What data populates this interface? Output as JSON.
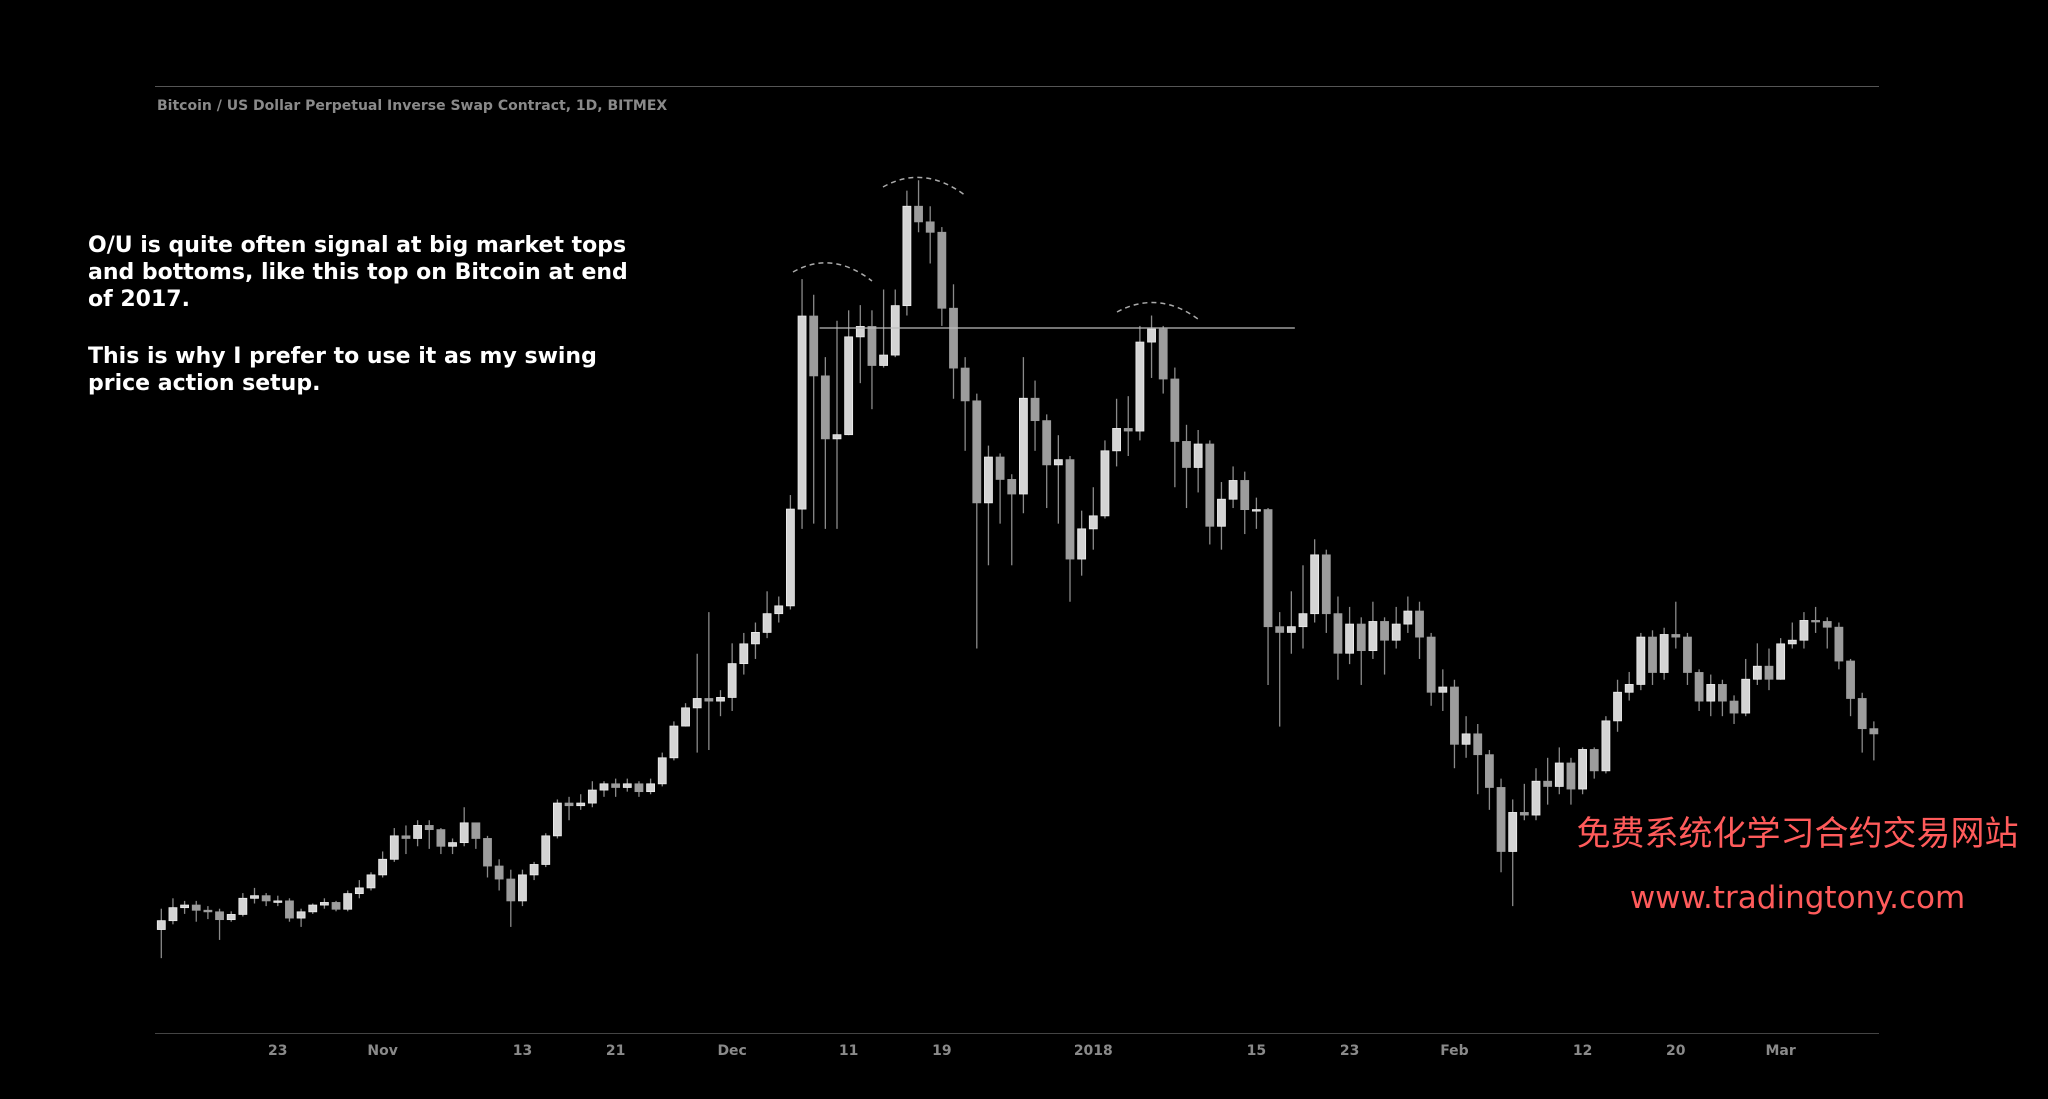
{
  "chart_data": {
    "type": "candlestick",
    "title": "Bitcoin / US Dollar Perpetual Inverse Swap Contract, 1D, BITMEX",
    "categories": [
      null,
      null,
      null,
      null,
      null,
      null,
      null,
      null,
      null,
      null,
      "23",
      null,
      null,
      null,
      null,
      null,
      null,
      null,
      null,
      "Nov",
      null,
      null,
      null,
      null,
      null,
      null,
      null,
      null,
      null,
      null,
      null,
      "13",
      null,
      null,
      null,
      null,
      null,
      null,
      null,
      "21",
      null,
      null,
      null,
      null,
      null,
      null,
      null,
      null,
      null,
      "Dec",
      null,
      null,
      null,
      null,
      null,
      null,
      null,
      null,
      null,
      "11",
      null,
      null,
      null,
      null,
      null,
      null,
      null,
      "19",
      null,
      null,
      null,
      null,
      null,
      null,
      null,
      null,
      null,
      null,
      null,
      null,
      "2018",
      null,
      null,
      null,
      null,
      null,
      null,
      null,
      null,
      null,
      null,
      null,
      null,
      null,
      "15",
      null,
      null,
      null,
      null,
      null,
      null,
      null,
      "23",
      null,
      null,
      null,
      null,
      null,
      null,
      null,
      null,
      "Feb",
      null,
      null,
      null,
      null,
      null,
      null,
      null,
      null,
      null,
      null,
      "12",
      null,
      null,
      null,
      null,
      null,
      null,
      null,
      "20",
      null,
      null,
      null,
      null,
      null,
      null,
      null,
      null,
      "Mar",
      null,
      null,
      null,
      null,
      null,
      null,
      null,
      null
    ],
    "open": [
      5500,
      5670,
      5920,
      5970,
      5870,
      5840,
      5690,
      5790,
      6100,
      6150,
      6050,
      6050,
      5720,
      5840,
      5970,
      6020,
      5890,
      6190,
      6300,
      6550,
      6850,
      7300,
      7250,
      7500,
      7420,
      7100,
      7170,
      7550,
      7250,
      6720,
      6470,
      6050,
      6550,
      6750,
      7300,
      7930,
      7880,
      7930,
      8180,
      8300,
      8230,
      8300,
      8150,
      8300,
      8800,
      9410,
      9760,
      9940,
      9890,
      9960,
      10610,
      10990,
      11210,
      11570,
      11720,
      13580,
      17290,
      16140,
      14930,
      15010,
      16890,
      17090,
      16340,
      16540,
      17490,
      19400,
      19100,
      18900,
      17440,
      16290,
      15660,
      13700,
      14580,
      14150,
      13870,
      15710,
      15280,
      14430,
      14530,
      12620,
      13200,
      13450,
      14700,
      15130,
      15080,
      16790,
      17040,
      16080,
      14880,
      14380,
      14830,
      13250,
      13770,
      14130,
      13570,
      13570,
      11320,
      11210,
      11320,
      11570,
      12700,
      11570,
      10810,
      11370,
      10860,
      11420,
      11060,
      11370,
      11620,
      11120,
      10060,
      10160,
      9060,
      9260,
      8860,
      8230,
      7000,
      7750,
      7700,
      8350,
      8250,
      8700,
      8200,
      8960,
      8550,
      9510,
      10060,
      10210,
      11120,
      10440,
      11170,
      11120,
      10440,
      9890,
      10210,
      9890,
      9660,
      10310,
      10560,
      10310,
      10990,
      11060,
      11440,
      11420,
      11310,
      10660,
      9940,
      9360
    ],
    "high": [
      5900,
      6100,
      6050,
      6050,
      5950,
      5900,
      5850,
      6200,
      6300,
      6200,
      6150,
      6100,
      5900,
      6000,
      6100,
      6050,
      6250,
      6450,
      6600,
      7000,
      7450,
      7500,
      7600,
      7600,
      7450,
      7250,
      7850,
      7550,
      7300,
      6850,
      6650,
      6650,
      6800,
      7350,
      8000,
      8050,
      8100,
      8350,
      8350,
      8400,
      8400,
      8350,
      8400,
      8900,
      9500,
      9850,
      10800,
      11600,
      10100,
      11000,
      11200,
      11400,
      12000,
      11900,
      13850,
      18000,
      17700,
      16500,
      17200,
      17400,
      17500,
      17400,
      17800,
      17800,
      19700,
      19900,
      19400,
      19000,
      17900,
      16500,
      15800,
      14800,
      14650,
      14250,
      16500,
      16050,
      15400,
      15000,
      14600,
      13550,
      14000,
      14900,
      15700,
      15750,
      17100,
      17300,
      17100,
      16300,
      15200,
      15100,
      14900,
      14100,
      14400,
      14300,
      13800,
      13600,
      11600,
      12000,
      12500,
      13000,
      12800,
      11900,
      11700,
      11500,
      11800,
      11500,
      11700,
      11900,
      11800,
      11200,
      10500,
      10300,
      9600,
      9450,
      8950,
      8400,
      8000,
      8300,
      8600,
      8800,
      9000,
      8800,
      9000,
      9000,
      9600,
      10300,
      10450,
      11200,
      11250,
      11300,
      11800,
      11200,
      10500,
      10400,
      10300,
      10000,
      10700,
      11000,
      10900,
      11100,
      11400,
      11600,
      11700,
      11500,
      11400,
      10700,
      10050,
      9500
    ],
    "low": [
      4950,
      5600,
      5800,
      5650,
      5700,
      5300,
      5650,
      5750,
      6000,
      5950,
      5950,
      5650,
      5550,
      5800,
      5900,
      5850,
      5850,
      6100,
      6250,
      6500,
      6800,
      6950,
      7100,
      7050,
      6950,
      6950,
      7100,
      7050,
      6500,
      6250,
      5550,
      5950,
      6450,
      6700,
      7250,
      7600,
      7800,
      7850,
      8050,
      8050,
      8150,
      8050,
      8100,
      8250,
      8750,
      9400,
      8900,
      8950,
      9600,
      9700,
      10400,
      10700,
      11100,
      11400,
      11650,
      13200,
      13300,
      13200,
      13200,
      15000,
      16000,
      15500,
      16300,
      16500,
      17300,
      18900,
      18300,
      17100,
      15700,
      14700,
      10900,
      12500,
      13300,
      12500,
      13500,
      14700,
      13600,
      13300,
      11800,
      12300,
      12800,
      13400,
      14400,
      14600,
      14900,
      16100,
      15800,
      14000,
      13600,
      13900,
      12900,
      12800,
      13600,
      13100,
      13200,
      10200,
      9400,
      10800,
      10900,
      11400,
      11200,
      10300,
      10600,
      10200,
      10700,
      10400,
      10900,
      11200,
      10700,
      9800,
      9700,
      8600,
      8800,
      8100,
      7800,
      6600,
      5950,
      7600,
      7600,
      7900,
      8100,
      7900,
      8100,
      8400,
      8500,
      9300,
      9900,
      10100,
      10200,
      10300,
      10900,
      10200,
      9700,
      9600,
      9600,
      9450,
      9600,
      10200,
      10100,
      10300,
      10900,
      10900,
      11200,
      10900,
      10500,
      9600,
      8900,
      8750
    ],
    "close": [
      5670,
      5920,
      5970,
      5870,
      5840,
      5690,
      5790,
      6100,
      6150,
      6050,
      6050,
      5720,
      5840,
      5970,
      6020,
      5890,
      6190,
      6300,
      6550,
      6850,
      7300,
      7250,
      7500,
      7420,
      7100,
      7170,
      7550,
      7250,
      6720,
      6470,
      6050,
      6550,
      6750,
      7300,
      7930,
      7880,
      7930,
      8180,
      8300,
      8230,
      8300,
      8150,
      8300,
      8800,
      9410,
      9760,
      9940,
      9890,
      9960,
      10610,
      10990,
      11210,
      11570,
      11720,
      13580,
      17290,
      16140,
      14930,
      15010,
      16890,
      17090,
      16340,
      16540,
      17490,
      19400,
      19100,
      18900,
      17440,
      16290,
      15660,
      13700,
      14580,
      14150,
      13870,
      15710,
      15280,
      14430,
      14530,
      12620,
      13200,
      13450,
      14700,
      15130,
      15080,
      16790,
      17040,
      16080,
      14880,
      14380,
      14830,
      13250,
      13770,
      14130,
      13570,
      13570,
      11320,
      11210,
      11320,
      11570,
      12700,
      11570,
      10810,
      11370,
      10860,
      11420,
      11060,
      11370,
      11620,
      11120,
      10060,
      10160,
      9060,
      9260,
      8860,
      8230,
      7000,
      7750,
      7700,
      8350,
      8250,
      8700,
      8200,
      8960,
      8550,
      9510,
      10060,
      10210,
      11120,
      10440,
      11170,
      11120,
      10440,
      9890,
      10210,
      9890,
      9660,
      10310,
      10560,
      10310,
      10990,
      11060,
      11440,
      11420,
      11310,
      10660,
      9940,
      9360,
      9260
    ],
    "ylim": [
      3000,
      21000
    ],
    "up_color": "#d4d4d4",
    "down_color": "#9c9c9c",
    "wick_color": "#8a8a8a",
    "hline": 17060
  },
  "annotation": [
    "O/U is quite often signal at big market tops",
    "and bottoms, like this top on Bitcoin at end",
    "of 2017.",
    "This is why I prefer to use it as my swing",
    "price action setup."
  ],
  "watermark": {
    "title": "免费系统化学习合约交易网站",
    "url": "www.tradingtony.com"
  }
}
